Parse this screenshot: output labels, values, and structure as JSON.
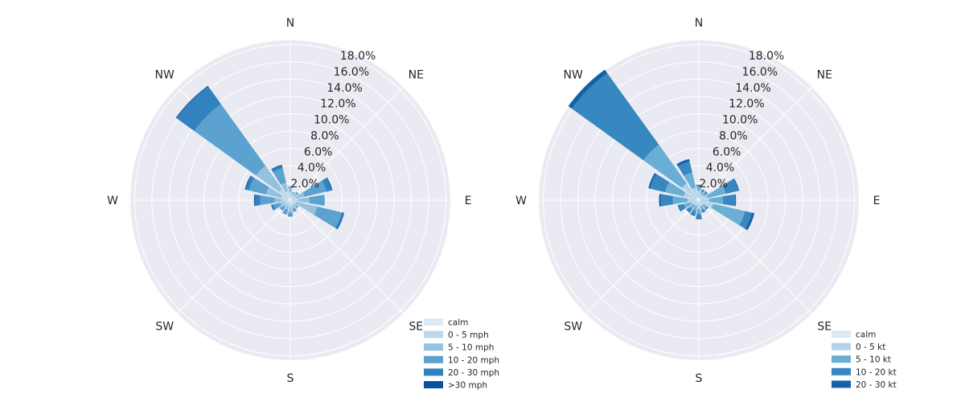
{
  "colors": {
    "background": "#ffffff",
    "polar_face": "#eaeaf2",
    "grid": "#ffffff",
    "text": "#262626"
  },
  "chart_data": [
    {
      "type": "windrose",
      "title": "",
      "directions": [
        "N",
        "NNE",
        "NE",
        "ENE",
        "E",
        "ESE",
        "SE",
        "SSE",
        "S",
        "SSW",
        "SW",
        "WSW",
        "W",
        "WNW",
        "NW",
        "NNW"
      ],
      "direction_labels": [
        "N",
        "NE",
        "E",
        "SE",
        "S",
        "SW",
        "W",
        "NW"
      ],
      "radial_ticks": [
        "2.0%",
        "4.0%",
        "6.0%",
        "8.0%",
        "10.0%",
        "12.0%",
        "14.0%",
        "16.0%",
        "18.0%"
      ],
      "rmax": 18.5,
      "legend_placement": "lower-right",
      "series": [
        {
          "name": "calm",
          "color": "#dde9f5",
          "values": [
            0.3,
            0.2,
            0.2,
            0.2,
            0.2,
            0.2,
            0.2,
            0.2,
            0.3,
            0.2,
            0.2,
            0.2,
            0.3,
            0.3,
            0.4,
            0.3
          ]
        },
        {
          "name": "0 - 5 mph",
          "color": "#bdd7ec",
          "values": [
            0.6,
            0.4,
            0.4,
            0.5,
            0.7,
            0.5,
            0.4,
            0.4,
            0.5,
            0.4,
            0.4,
            0.4,
            0.6,
            0.8,
            1.2,
            0.8
          ]
        },
        {
          "name": "5 - 10 mph",
          "color": "#93c2df",
          "values": [
            0.5,
            0.3,
            0.4,
            1.0,
            1.3,
            2.5,
            0.4,
            0.4,
            0.6,
            0.5,
            0.4,
            0.6,
            0.9,
            1.8,
            3.3,
            1.0
          ]
        },
        {
          "name": "10 - 20 mph",
          "color": "#5ba2d0",
          "values": [
            0.2,
            0.1,
            0.2,
            2.6,
            1.8,
            2.9,
            0.2,
            0.3,
            0.4,
            0.5,
            0.4,
            0.8,
            1.7,
            2.0,
            8.8,
            1.7
          ]
        },
        {
          "name": "20 - 30 mph",
          "color": "#3182be",
          "values": [
            0.0,
            0.0,
            0.0,
            0.6,
            0.0,
            0.2,
            0.0,
            0.1,
            0.1,
            0.1,
            0.1,
            0.3,
            0.6,
            0.4,
            2.5,
            0.3
          ]
        },
        {
          "name": ">30 mph",
          "color": "#08519c",
          "values": [
            0.0,
            0.0,
            0.0,
            0.1,
            0.0,
            0.1,
            0.0,
            0.0,
            0.0,
            0.0,
            0.0,
            0.0,
            0.1,
            0.1,
            0.1,
            0.1
          ]
        }
      ]
    },
    {
      "type": "windrose",
      "title": "",
      "directions": [
        "N",
        "NNE",
        "NE",
        "ENE",
        "E",
        "ESE",
        "SE",
        "SSE",
        "S",
        "SSW",
        "SW",
        "WSW",
        "W",
        "WNW",
        "NW",
        "NNW"
      ],
      "direction_labels": [
        "N",
        "NE",
        "E",
        "SE",
        "S",
        "SW",
        "W",
        "NW"
      ],
      "radial_ticks": [
        "2.0%",
        "4.0%",
        "6.0%",
        "8.0%",
        "10.0%",
        "12.0%",
        "14.0%",
        "16.0%",
        "18.0%"
      ],
      "rmax": 18.5,
      "legend_placement": "lower-right",
      "series": [
        {
          "name": "calm",
          "color": "#dde9f5",
          "values": [
            0.3,
            0.2,
            0.2,
            0.2,
            0.2,
            0.2,
            0.2,
            0.2,
            0.3,
            0.2,
            0.2,
            0.2,
            0.3,
            0.3,
            0.4,
            0.3
          ]
        },
        {
          "name": "0 - 5 kt",
          "color": "#b4d3e9",
          "values": [
            0.8,
            0.5,
            0.5,
            0.8,
            1.0,
            1.5,
            0.5,
            0.5,
            0.7,
            0.5,
            0.5,
            0.7,
            1.0,
            1.5,
            2.0,
            1.2
          ]
        },
        {
          "name": "5 - 10 kt",
          "color": "#6aaed6",
          "values": [
            0.5,
            0.4,
            0.4,
            2.2,
            1.6,
            3.8,
            0.5,
            0.5,
            0.6,
            0.6,
            0.6,
            0.9,
            1.7,
            2.2,
            5.5,
            1.8
          ]
        },
        {
          "name": "10 - 20 kt",
          "color": "#3787c0",
          "values": [
            0.2,
            0.2,
            0.2,
            1.5,
            1.4,
            0.8,
            0.2,
            0.3,
            0.5,
            0.5,
            0.4,
            0.6,
            1.4,
            1.8,
            10.2,
            1.3
          ]
        },
        {
          "name": "20 - 30 kt",
          "color": "#1361a9",
          "values": [
            0.0,
            0.0,
            0.0,
            0.1,
            0.1,
            0.3,
            0.0,
            0.0,
            0.1,
            0.1,
            0.1,
            0.1,
            0.2,
            0.2,
            0.5,
            0.3
          ]
        }
      ]
    }
  ]
}
